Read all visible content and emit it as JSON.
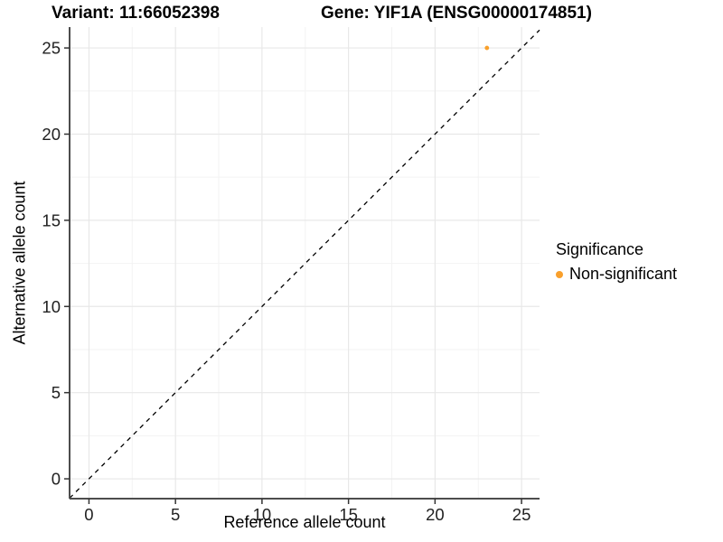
{
  "header": {
    "variant_title": "Variant: 11:66052398",
    "gene_title": "Gene: YIF1A (ENSG00000174851)"
  },
  "chart_data": {
    "type": "scatter",
    "xlabel": "Reference allele count",
    "ylabel": "Alternative allele count",
    "x_ticks": [
      0,
      5,
      10,
      15,
      20,
      25
    ],
    "y_ticks": [
      0,
      5,
      10,
      15,
      20,
      25
    ],
    "x_minor_ticks": [
      2.5,
      7.5,
      12.5,
      17.5,
      22.5
    ],
    "y_minor_ticks": [
      2.5,
      7.5,
      12.5,
      17.5,
      22.5
    ],
    "xlim": [
      -1.12,
      26.04
    ],
    "ylim": [
      -1.15,
      26.21
    ],
    "grid": {
      "major": true,
      "minor": true,
      "major_color": "#E8E8E8",
      "minor_color": "#F3F3F3"
    },
    "axis_line_color": "#4D4D4D",
    "tick_color": "#333333",
    "tick_label_color": "#212121",
    "series": [
      {
        "name": "Non-significant",
        "color": "#F9A02C",
        "points": [
          {
            "x": 23,
            "y": 25
          }
        ]
      }
    ],
    "reference_line": {
      "type": "identity",
      "intercept": 0,
      "slope": 1,
      "style": "dashed",
      "color": "#000000"
    },
    "legend": {
      "title": "Significance",
      "position": "right",
      "items": [
        {
          "label": "Non-significant",
          "color": "#F9A02C"
        }
      ]
    }
  }
}
